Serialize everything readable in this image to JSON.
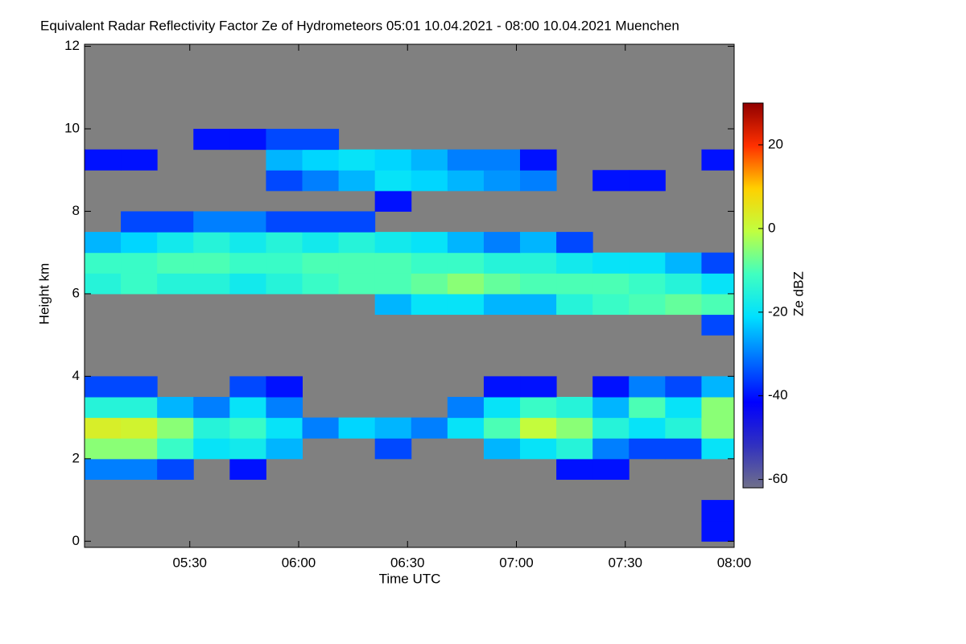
{
  "chart_data": {
    "type": "heatmap",
    "title": "Equivalent Radar Reflectivity Factor Ze of Hydrometeors   05:01 10.04.2021 - 08:00 10.04.2021 Muenchen",
    "x_label": "Time UTC",
    "y_label": "Height km",
    "colorbar_label": "Ze dBZ",
    "xlim": [
      301,
      480
    ],
    "xticks": [
      {
        "value": 330,
        "label": "05:30"
      },
      {
        "value": 360,
        "label": "06:00"
      },
      {
        "value": 390,
        "label": "06:30"
      },
      {
        "value": 420,
        "label": "07:00"
      },
      {
        "value": 450,
        "label": "07:30"
      },
      {
        "value": 480,
        "label": "08:00"
      }
    ],
    "ylim": [
      -0.15,
      12.05
    ],
    "yticks": [
      0,
      2,
      4,
      6,
      8,
      10,
      12
    ],
    "clim": [
      -62,
      30
    ],
    "cticks": [
      20,
      0,
      -20,
      -40,
      -60
    ],
    "colormap": [
      "#70708a",
      "#3030c0",
      "#0000ff",
      "#0070ff",
      "#00e0ff",
      "#40ffc0",
      "#c0ff40",
      "#ffd000",
      "#ff3000",
      "#900000"
    ],
    "nan_color": "#808080",
    "x": [
      301,
      311,
      321,
      331,
      341,
      351,
      361,
      371,
      381,
      391,
      401,
      411,
      421,
      431,
      441,
      451,
      461,
      471
    ],
    "y": [
      0,
      0.5,
      1,
      1.5,
      2,
      2.5,
      3,
      3.5,
      4,
      4.5,
      5,
      5.5,
      6,
      6.5,
      7,
      7.5,
      8,
      8.5,
      9,
      9.5,
      10,
      10.5,
      11,
      11.5
    ],
    "z": [
      [
        null,
        null,
        null,
        null,
        null,
        null,
        null,
        null,
        null,
        null,
        null,
        null,
        null,
        null,
        null,
        null,
        null,
        -40
      ],
      [
        null,
        null,
        null,
        null,
        null,
        null,
        null,
        null,
        null,
        null,
        null,
        null,
        null,
        null,
        null,
        null,
        null,
        -40
      ],
      [
        null,
        null,
        null,
        null,
        null,
        null,
        null,
        null,
        null,
        null,
        null,
        null,
        null,
        null,
        null,
        null,
        null,
        null
      ],
      [
        -30,
        -30,
        -35,
        null,
        -40,
        null,
        null,
        null,
        null,
        null,
        null,
        null,
        null,
        -40,
        -40,
        null,
        null,
        null
      ],
      [
        -5,
        -5,
        -12,
        -20,
        -18,
        -25,
        null,
        null,
        -35,
        null,
        null,
        -25,
        -20,
        -15,
        -30,
        -35,
        -35,
        -20
      ],
      [
        3,
        2,
        -5,
        -15,
        -12,
        -20,
        -30,
        -22,
        -25,
        -30,
        -20,
        -10,
        0,
        -5,
        -15,
        -20,
        -15,
        -5
      ],
      [
        -15,
        -15,
        -25,
        -30,
        -20,
        -30,
        null,
        null,
        null,
        null,
        -30,
        -20,
        -12,
        -15,
        -25,
        -10,
        -20,
        -5
      ],
      [
        -35,
        -35,
        null,
        null,
        -35,
        -40,
        null,
        null,
        null,
        null,
        null,
        -40,
        -40,
        null,
        -40,
        -30,
        -35,
        -25
      ],
      [
        null,
        null,
        null,
        null,
        null,
        null,
        null,
        null,
        null,
        null,
        null,
        null,
        null,
        null,
        null,
        null,
        null,
        null
      ],
      [
        null,
        null,
        null,
        null,
        null,
        null,
        null,
        null,
        null,
        null,
        null,
        null,
        null,
        null,
        null,
        null,
        null,
        null
      ],
      [
        null,
        null,
        null,
        null,
        null,
        null,
        null,
        null,
        null,
        null,
        null,
        null,
        null,
        null,
        null,
        null,
        null,
        -35
      ],
      [
        null,
        null,
        null,
        null,
        null,
        null,
        null,
        null,
        -25,
        -20,
        -20,
        -25,
        -25,
        -15,
        -12,
        -10,
        -8,
        -10
      ],
      [
        -15,
        -12,
        -15,
        -15,
        -18,
        -15,
        -12,
        -10,
        -10,
        -8,
        -5,
        -8,
        -10,
        -10,
        -10,
        -12,
        -15,
        -20
      ],
      [
        -12,
        -12,
        -10,
        -10,
        -12,
        -12,
        -10,
        -10,
        -10,
        -12,
        -12,
        -15,
        -15,
        -18,
        -20,
        -20,
        -25,
        -35
      ],
      [
        -25,
        -22,
        -18,
        -15,
        -18,
        -15,
        -18,
        -15,
        -18,
        -20,
        -25,
        -30,
        -25,
        -35,
        null,
        null,
        null,
        null
      ],
      [
        null,
        -35,
        -35,
        -30,
        -30,
        -35,
        -35,
        -35,
        null,
        null,
        null,
        null,
        null,
        null,
        null,
        null,
        null,
        null
      ],
      [
        null,
        null,
        null,
        null,
        null,
        null,
        null,
        null,
        -40,
        null,
        null,
        null,
        null,
        null,
        null,
        null,
        null,
        null
      ],
      [
        null,
        null,
        null,
        null,
        null,
        -35,
        -30,
        -25,
        -20,
        -22,
        -25,
        -28,
        -30,
        null,
        -40,
        -40,
        null,
        null
      ],
      [
        -40,
        -40,
        null,
        null,
        null,
        -25,
        -22,
        -20,
        -22,
        -25,
        -30,
        -30,
        -40,
        null,
        null,
        null,
        null,
        -40
      ],
      [
        null,
        null,
        null,
        -40,
        -40,
        -35,
        -35,
        null,
        null,
        null,
        null,
        null,
        null,
        null,
        null,
        null,
        null,
        null
      ],
      [
        null,
        null,
        null,
        null,
        null,
        null,
        null,
        null,
        null,
        null,
        null,
        null,
        null,
        null,
        null,
        null,
        null,
        null
      ],
      [
        null,
        null,
        null,
        null,
        null,
        null,
        null,
        null,
        null,
        null,
        null,
        null,
        null,
        null,
        null,
        null,
        null,
        null
      ],
      [
        null,
        null,
        null,
        null,
        null,
        null,
        null,
        null,
        null,
        null,
        null,
        null,
        null,
        null,
        null,
        null,
        null,
        null
      ],
      [
        null,
        null,
        null,
        null,
        null,
        null,
        null,
        null,
        null,
        null,
        null,
        null,
        null,
        null,
        null,
        null,
        null,
        null
      ]
    ]
  }
}
